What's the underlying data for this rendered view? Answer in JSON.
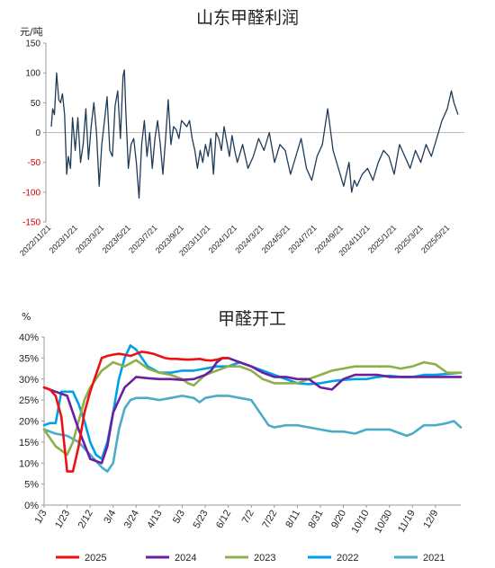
{
  "chart_data": [
    {
      "type": "line",
      "title": "山东甲醛利润",
      "ylabel": "元/吨",
      "ylim": [
        -150,
        150
      ],
      "yticks": [
        150,
        100,
        50,
        0,
        -50,
        -100,
        -150
      ],
      "negative_tick_color": "#d00000",
      "grid": false,
      "x_ticks": [
        "2022/11/21",
        "2023/1/21",
        "2023/3/21",
        "2023/5/21",
        "2023/7/21",
        "2023/9/21",
        "2023/11/21",
        "2024/1/21",
        "2024/3/21",
        "2024/5/21",
        "2024/7/21",
        "2024/9/21",
        "2024/11/21",
        "2025/1/21",
        "2025/3/21",
        "2025/5/21"
      ],
      "series": [
        {
          "color": "#1f3b57",
          "x_index": [
            0,
            0.05,
            0.12,
            0.2,
            0.28,
            0.35,
            0.42,
            0.5,
            0.58,
            0.64,
            0.72,
            0.8,
            0.9,
            1.0,
            1.1,
            1.2,
            1.3,
            1.4,
            1.5,
            1.6,
            1.7,
            1.8,
            1.9,
            2.0,
            2.1,
            2.2,
            2.3,
            2.4,
            2.5,
            2.6,
            2.7,
            2.75,
            2.8,
            2.9,
            3.0,
            3.1,
            3.2,
            3.3,
            3.4,
            3.5,
            3.6,
            3.7,
            3.8,
            3.9,
            4.0,
            4.1,
            4.2,
            4.3,
            4.4,
            4.5,
            4.6,
            4.7,
            4.8,
            4.9,
            5.0,
            5.1,
            5.2,
            5.3,
            5.4,
            5.5,
            5.6,
            5.7,
            5.8,
            5.9,
            6.0,
            6.1,
            6.2,
            6.3,
            6.4,
            6.5,
            6.6,
            6.7,
            6.8,
            6.9,
            7.0,
            7.2,
            7.4,
            7.6,
            7.8,
            8.0,
            8.2,
            8.4,
            8.6,
            8.8,
            9.0,
            9.2,
            9.4,
            9.6,
            9.8,
            10.0,
            10.2,
            10.4,
            10.6,
            10.8,
            11.0,
            11.1,
            11.2,
            11.3,
            11.4,
            11.5,
            11.7,
            11.9,
            12.1,
            12.3,
            12.5,
            12.7,
            12.9,
            13.1,
            13.3,
            13.5,
            13.7,
            13.9,
            14.1,
            14.3,
            14.5,
            14.7,
            14.9,
            15.05,
            15.15,
            15.3
          ],
          "values": [
            10,
            40,
            30,
            100,
            55,
            50,
            65,
            30,
            -70,
            -40,
            -60,
            25,
            -30,
            25,
            -50,
            -20,
            40,
            -45,
            10,
            50,
            0,
            -90,
            -20,
            20,
            60,
            -30,
            -40,
            45,
            70,
            -10,
            95,
            105,
            40,
            -60,
            -20,
            -10,
            -50,
            -110,
            -20,
            20,
            -40,
            0,
            -60,
            -10,
            20,
            -20,
            -70,
            -10,
            55,
            -20,
            10,
            5,
            -10,
            20,
            15,
            10,
            20,
            -10,
            -30,
            -60,
            -30,
            -50,
            -20,
            -40,
            -10,
            -70,
            0,
            -10,
            -30,
            10,
            -15,
            -40,
            -5,
            -30,
            -50,
            -20,
            -60,
            -40,
            -10,
            -30,
            0,
            -50,
            -20,
            -30,
            -70,
            -40,
            -10,
            -60,
            -80,
            -40,
            -20,
            40,
            -30,
            -60,
            -90,
            -70,
            -50,
            -100,
            -80,
            -90,
            -70,
            -60,
            -80,
            -50,
            -30,
            -40,
            -70,
            -20,
            -40,
            -60,
            -30,
            -50,
            -20,
            -40,
            -10,
            20,
            40,
            70,
            50,
            30
          ]
        }
      ]
    },
    {
      "type": "line",
      "title": "甲醛开工",
      "ylabel": "%",
      "ylim": [
        0,
        40
      ],
      "yticks": [
        "40%",
        "35%",
        "30%",
        "25%",
        "20%",
        "15%",
        "10%",
        "5%",
        "0%"
      ],
      "grid": false,
      "x_ticks": [
        "1/3",
        "1/23",
        "2/12",
        "3/4",
        "3/24",
        "4/13",
        "5/3",
        "5/23",
        "6/12",
        "7/2",
        "7/22",
        "8/11",
        "8/31",
        "9/20",
        "10/10",
        "10/30",
        "11/19",
        "12/9"
      ],
      "x_range_days": [
        0,
        362
      ],
      "legend_position": "bottom",
      "series": [
        {
          "name": "2025",
          "color": "#ee1111",
          "x": [
            0,
            5,
            10,
            15,
            20,
            25,
            30,
            35,
            40,
            45,
            50,
            55,
            60,
            65,
            70,
            75,
            80,
            85,
            90,
            95,
            100,
            105,
            110,
            115,
            120,
            125,
            130,
            135,
            140,
            145,
            150,
            155,
            160
          ],
          "values": [
            28,
            27.5,
            26,
            21,
            8,
            8,
            14,
            22,
            27,
            31,
            35,
            35.5,
            35.8,
            36,
            35.8,
            35.5,
            36,
            36.5,
            36.3,
            36,
            35.5,
            35,
            34.8,
            34.8,
            34.7,
            34.6,
            34.7,
            34.8,
            34.5,
            34.4,
            34.6,
            35,
            35
          ]
        },
        {
          "name": "2024",
          "color": "#6a1fa2",
          "x": [
            0,
            10,
            20,
            30,
            40,
            50,
            55,
            60,
            70,
            80,
            90,
            100,
            110,
            120,
            130,
            140,
            145,
            150,
            155,
            160,
            170,
            180,
            190,
            200,
            210,
            220,
            230,
            240,
            250,
            260,
            270,
            280,
            290,
            300,
            310,
            320,
            330,
            340,
            350,
            362
          ],
          "values": [
            28,
            27,
            26,
            18,
            11,
            10,
            14,
            22,
            28,
            30.5,
            30.2,
            30,
            30,
            29.8,
            30,
            31,
            32,
            34,
            35,
            35,
            34,
            33,
            31.5,
            30.5,
            30.5,
            30,
            30,
            28,
            27.5,
            30,
            31,
            31,
            31,
            30.5,
            30.5,
            30.5,
            30.5,
            30.5,
            30.5,
            30.5
          ]
        },
        {
          "name": "2023",
          "color": "#8db04a",
          "x": [
            0,
            10,
            20,
            25,
            30,
            35,
            40,
            45,
            50,
            60,
            70,
            80,
            90,
            100,
            110,
            120,
            125,
            130,
            140,
            150,
            160,
            170,
            180,
            190,
            200,
            210,
            220,
            230,
            240,
            250,
            260,
            270,
            280,
            290,
            300,
            310,
            320,
            330,
            340,
            350,
            362
          ],
          "values": [
            18,
            14,
            12,
            15,
            20,
            25,
            28,
            30,
            32,
            34,
            33,
            34.5,
            32.5,
            31.5,
            31,
            30,
            29,
            28.5,
            31,
            32,
            33,
            33,
            32,
            30,
            29,
            29,
            29,
            30,
            31,
            32,
            32.5,
            33,
            33,
            33,
            33,
            32.5,
            33,
            34,
            33.5,
            31.5,
            31.5
          ]
        },
        {
          "name": "2022",
          "color": "#00a0e8",
          "x": [
            0,
            5,
            10,
            15,
            20,
            25,
            30,
            35,
            40,
            45,
            50,
            55,
            60,
            65,
            70,
            75,
            80,
            85,
            90,
            100,
            110,
            120,
            130,
            140,
            150,
            160,
            170,
            180,
            190,
            200,
            210,
            220,
            230,
            240,
            250,
            260,
            270,
            280,
            290,
            300,
            310,
            320,
            330,
            340,
            350,
            362
          ],
          "values": [
            19,
            19.5,
            19.5,
            27,
            27,
            27,
            24,
            20,
            15,
            12,
            11,
            15,
            22,
            30,
            35,
            38,
            37,
            35,
            33,
            31.5,
            31.5,
            32,
            32,
            32.5,
            33,
            33,
            34,
            33,
            32,
            31,
            30,
            29,
            28.8,
            29,
            29.5,
            29.8,
            30,
            30,
            30.5,
            30.8,
            30.5,
            30.5,
            31,
            31,
            31.2,
            31.5
          ]
        },
        {
          "name": "2021",
          "color": "#4aacc6",
          "x": [
            0,
            10,
            20,
            30,
            40,
            50,
            55,
            60,
            65,
            70,
            75,
            80,
            90,
            100,
            110,
            120,
            130,
            135,
            140,
            150,
            160,
            170,
            180,
            190,
            195,
            200,
            210,
            220,
            230,
            240,
            250,
            260,
            270,
            280,
            290,
            300,
            310,
            315,
            320,
            330,
            340,
            350,
            356,
            362
          ],
          "values": [
            18,
            17,
            16.5,
            15,
            12,
            9,
            8,
            10,
            18,
            23,
            25,
            25.5,
            25.5,
            25,
            25.5,
            26,
            25.5,
            24.5,
            25.5,
            26,
            26,
            25.5,
            25,
            21,
            19,
            18.5,
            19,
            19,
            18.5,
            18,
            17.5,
            17.5,
            17,
            18,
            18,
            18,
            17,
            16.5,
            17,
            19,
            19,
            19.5,
            20,
            18.5
          ]
        }
      ]
    }
  ]
}
